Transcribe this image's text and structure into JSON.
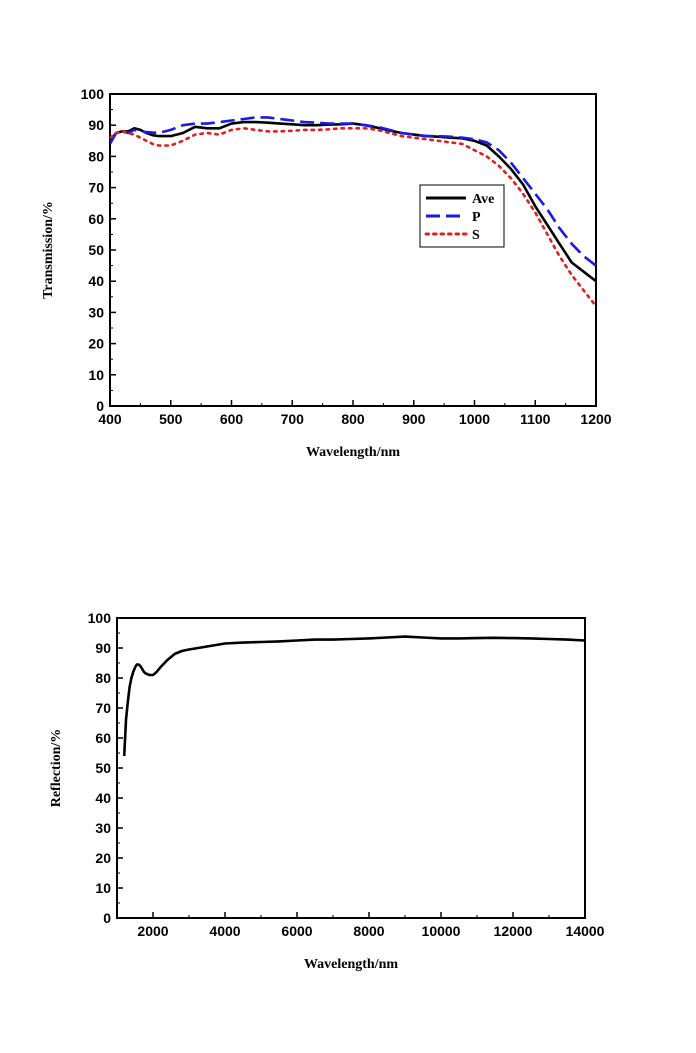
{
  "chart_data": [
    {
      "type": "line",
      "xlabel": "Wavelength/nm",
      "ylabel": "Transmission/%",
      "xlim": [
        400,
        1200
      ],
      "ylim": [
        0,
        100
      ],
      "xticks": [
        400,
        500,
        600,
        700,
        800,
        900,
        1000,
        1100,
        1200
      ],
      "yticks": [
        0,
        10,
        20,
        30,
        40,
        50,
        60,
        70,
        80,
        90,
        100
      ],
      "legend_position": "center-right",
      "series": [
        {
          "name": "Ave",
          "color": "#000000",
          "style": "solid",
          "x": [
            400,
            410,
            420,
            430,
            440,
            450,
            460,
            470,
            480,
            500,
            520,
            540,
            560,
            580,
            600,
            620,
            640,
            660,
            680,
            700,
            720,
            740,
            760,
            780,
            800,
            820,
            840,
            860,
            880,
            900,
            920,
            940,
            960,
            980,
            1000,
            1020,
            1040,
            1060,
            1080,
            1100,
            1120,
            1140,
            1160,
            1180,
            1200
          ],
          "y": [
            85,
            87.5,
            88,
            88,
            89,
            88.5,
            87.5,
            86.8,
            86.5,
            86.5,
            87.5,
            89.5,
            89,
            89,
            90.5,
            91,
            91,
            90.8,
            90.5,
            90.3,
            90,
            90,
            90.2,
            90.3,
            90.5,
            90,
            89.2,
            88.3,
            87.5,
            87,
            86.5,
            86.3,
            86,
            85.8,
            85,
            83.5,
            80,
            76,
            71,
            64,
            58,
            52,
            46,
            43,
            40
          ]
        },
        {
          "name": "P",
          "color": "#1a1ae6",
          "style": "dashed",
          "x": [
            400,
            410,
            420,
            430,
            440,
            460,
            480,
            500,
            520,
            540,
            560,
            580,
            600,
            620,
            640,
            660,
            680,
            700,
            720,
            740,
            760,
            780,
            800,
            820,
            840,
            860,
            880,
            900,
            920,
            940,
            960,
            980,
            1000,
            1020,
            1040,
            1060,
            1080,
            1100,
            1120,
            1140,
            1160,
            1180,
            1200
          ],
          "y": [
            84,
            87.5,
            88,
            87.5,
            88.5,
            87.8,
            87.5,
            88.5,
            90,
            90.5,
            90.5,
            91,
            91.5,
            92,
            92.5,
            92.5,
            92,
            91.5,
            91,
            90.8,
            90.5,
            90.5,
            90.5,
            90,
            89.5,
            88.5,
            87.5,
            87,
            86.5,
            86.5,
            86.3,
            86,
            85.5,
            84.5,
            82,
            78,
            73,
            68,
            63,
            57,
            52,
            48,
            45
          ]
        },
        {
          "name": "S",
          "color": "#e02020",
          "style": "dotted",
          "x": [
            400,
            410,
            420,
            430,
            440,
            450,
            460,
            470,
            480,
            500,
            520,
            540,
            560,
            580,
            600,
            620,
            640,
            660,
            680,
            700,
            720,
            740,
            760,
            780,
            800,
            820,
            840,
            860,
            880,
            900,
            920,
            940,
            960,
            980,
            1000,
            1020,
            1040,
            1060,
            1080,
            1100,
            1120,
            1140,
            1160,
            1180,
            1200
          ],
          "y": [
            86,
            87.5,
            88,
            87.5,
            87,
            86,
            85,
            84,
            83.5,
            83.5,
            85,
            87,
            87.5,
            87,
            88.5,
            89,
            88.5,
            88,
            88,
            88.2,
            88.5,
            88.5,
            88.7,
            89,
            89,
            89,
            88.5,
            87.5,
            86.5,
            86,
            85.5,
            85,
            84.5,
            84,
            82,
            80,
            77,
            73,
            68,
            62,
            55,
            48,
            42,
            37,
            32
          ]
        }
      ]
    },
    {
      "type": "line",
      "xlabel": "Wavelength/nm",
      "ylabel": "Reflection/%",
      "xlim": [
        1000,
        14000
      ],
      "ylim": [
        0,
        100
      ],
      "xticks": [
        2000,
        4000,
        6000,
        8000,
        10000,
        12000,
        14000
      ],
      "yticks": [
        0,
        10,
        20,
        30,
        40,
        50,
        60,
        70,
        80,
        90,
        100
      ],
      "series": [
        {
          "name": "",
          "color": "#000000",
          "style": "solid",
          "x": [
            1200,
            1250,
            1300,
            1350,
            1400,
            1450,
            1500,
            1550,
            1600,
            1650,
            1700,
            1750,
            1800,
            1900,
            2000,
            2100,
            2200,
            2400,
            2600,
            2800,
            3000,
            3500,
            4000,
            4500,
            5000,
            5500,
            6000,
            6500,
            7000,
            7500,
            8000,
            8500,
            9000,
            9500,
            10000,
            10500,
            11000,
            11500,
            12000,
            12500,
            13000,
            13500,
            14000
          ],
          "y": [
            54,
            66,
            72,
            77,
            80,
            82,
            83.5,
            84.5,
            84.5,
            84,
            83,
            82,
            81.5,
            81,
            81,
            82,
            83.5,
            86,
            88,
            89,
            89.5,
            90.5,
            91.5,
            91.8,
            92,
            92.2,
            92.5,
            92.8,
            92.8,
            93,
            93.2,
            93.5,
            93.8,
            93.5,
            93.2,
            93.2,
            93.3,
            93.4,
            93.3,
            93.2,
            93,
            92.8,
            92.5
          ]
        }
      ]
    }
  ]
}
